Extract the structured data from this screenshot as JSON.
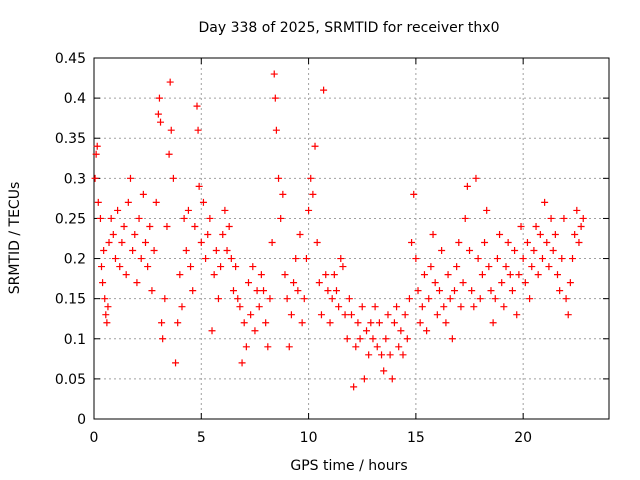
{
  "chart_data": {
    "type": "scatter",
    "title": "Day 338 of 2025, SRMTID for receiver thx0",
    "xlabel": "GPS time / hours",
    "ylabel": "SRMTID / TECUs",
    "xlim": [
      0,
      24
    ],
    "ylim": [
      0,
      0.45
    ],
    "xticks": [
      "0",
      "5",
      "10",
      "15",
      "20"
    ],
    "yticks": [
      "0",
      "0.05",
      "0.1",
      "0.15",
      "0.2",
      "0.25",
      "0.3",
      "0.35",
      "0.4",
      "0.45"
    ],
    "grid": true,
    "marker": "+",
    "series": [
      {
        "name": "SRMTID thx0",
        "color": "#ff0000",
        "points": [
          [
            0.05,
            0.3
          ],
          [
            0.1,
            0.33
          ],
          [
            0.15,
            0.34
          ],
          [
            0.2,
            0.27
          ],
          [
            0.3,
            0.25
          ],
          [
            0.35,
            0.19
          ],
          [
            0.4,
            0.17
          ],
          [
            0.45,
            0.21
          ],
          [
            0.5,
            0.15
          ],
          [
            0.55,
            0.13
          ],
          [
            0.6,
            0.12
          ],
          [
            0.65,
            0.14
          ],
          [
            0.7,
            0.22
          ],
          [
            0.8,
            0.25
          ],
          [
            0.9,
            0.23
          ],
          [
            1.0,
            0.2
          ],
          [
            1.1,
            0.26
          ],
          [
            1.2,
            0.19
          ],
          [
            1.3,
            0.22
          ],
          [
            1.4,
            0.24
          ],
          [
            1.5,
            0.18
          ],
          [
            1.6,
            0.27
          ],
          [
            1.7,
            0.3
          ],
          [
            1.8,
            0.21
          ],
          [
            1.9,
            0.23
          ],
          [
            2.0,
            0.17
          ],
          [
            2.1,
            0.25
          ],
          [
            2.2,
            0.2
          ],
          [
            2.3,
            0.28
          ],
          [
            2.4,
            0.22
          ],
          [
            2.5,
            0.19
          ],
          [
            2.6,
            0.24
          ],
          [
            2.7,
            0.16
          ],
          [
            2.8,
            0.21
          ],
          [
            2.9,
            0.27
          ],
          [
            3.0,
            0.38
          ],
          [
            3.05,
            0.4
          ],
          [
            3.1,
            0.37
          ],
          [
            3.15,
            0.12
          ],
          [
            3.2,
            0.1
          ],
          [
            3.3,
            0.15
          ],
          [
            3.4,
            0.24
          ],
          [
            3.5,
            0.33
          ],
          [
            3.55,
            0.42
          ],
          [
            3.6,
            0.36
          ],
          [
            3.7,
            0.3
          ],
          [
            3.8,
            0.07
          ],
          [
            3.9,
            0.12
          ],
          [
            4.0,
            0.18
          ],
          [
            4.1,
            0.14
          ],
          [
            4.2,
            0.25
          ],
          [
            4.3,
            0.21
          ],
          [
            4.4,
            0.26
          ],
          [
            4.5,
            0.19
          ],
          [
            4.6,
            0.16
          ],
          [
            4.7,
            0.24
          ],
          [
            4.8,
            0.39
          ],
          [
            4.85,
            0.36
          ],
          [
            4.9,
            0.29
          ],
          [
            5.0,
            0.22
          ],
          [
            5.1,
            0.27
          ],
          [
            5.2,
            0.2
          ],
          [
            5.3,
            0.23
          ],
          [
            5.4,
            0.25
          ],
          [
            5.5,
            0.11
          ],
          [
            5.6,
            0.18
          ],
          [
            5.7,
            0.21
          ],
          [
            5.8,
            0.15
          ],
          [
            5.9,
            0.19
          ],
          [
            6.0,
            0.23
          ],
          [
            6.1,
            0.26
          ],
          [
            6.2,
            0.21
          ],
          [
            6.3,
            0.24
          ],
          [
            6.4,
            0.2
          ],
          [
            6.5,
            0.16
          ],
          [
            6.6,
            0.19
          ],
          [
            6.7,
            0.15
          ],
          [
            6.8,
            0.14
          ],
          [
            6.9,
            0.07
          ],
          [
            7.0,
            0.12
          ],
          [
            7.1,
            0.09
          ],
          [
            7.2,
            0.17
          ],
          [
            7.3,
            0.13
          ],
          [
            7.4,
            0.19
          ],
          [
            7.5,
            0.11
          ],
          [
            7.6,
            0.16
          ],
          [
            7.7,
            0.14
          ],
          [
            7.8,
            0.18
          ],
          [
            7.9,
            0.16
          ],
          [
            8.0,
            0.12
          ],
          [
            8.1,
            0.09
          ],
          [
            8.2,
            0.15
          ],
          [
            8.3,
            0.22
          ],
          [
            8.4,
            0.43
          ],
          [
            8.45,
            0.4
          ],
          [
            8.5,
            0.36
          ],
          [
            8.6,
            0.3
          ],
          [
            8.7,
            0.25
          ],
          [
            8.8,
            0.28
          ],
          [
            8.9,
            0.18
          ],
          [
            9.0,
            0.15
          ],
          [
            9.1,
            0.09
          ],
          [
            9.2,
            0.13
          ],
          [
            9.3,
            0.17
          ],
          [
            9.4,
            0.2
          ],
          [
            9.5,
            0.16
          ],
          [
            9.6,
            0.23
          ],
          [
            9.7,
            0.12
          ],
          [
            9.8,
            0.15
          ],
          [
            9.9,
            0.2
          ],
          [
            10.0,
            0.26
          ],
          [
            10.1,
            0.3
          ],
          [
            10.2,
            0.28
          ],
          [
            10.3,
            0.34
          ],
          [
            10.4,
            0.22
          ],
          [
            10.5,
            0.17
          ],
          [
            10.6,
            0.13
          ],
          [
            10.7,
            0.41
          ],
          [
            10.8,
            0.18
          ],
          [
            10.9,
            0.16
          ],
          [
            11.0,
            0.12
          ],
          [
            11.1,
            0.15
          ],
          [
            11.2,
            0.18
          ],
          [
            11.3,
            0.16
          ],
          [
            11.4,
            0.14
          ],
          [
            11.5,
            0.2
          ],
          [
            11.6,
            0.19
          ],
          [
            11.7,
            0.13
          ],
          [
            11.8,
            0.1
          ],
          [
            11.9,
            0.15
          ],
          [
            12.0,
            0.13
          ],
          [
            12.1,
            0.04
          ],
          [
            12.2,
            0.09
          ],
          [
            12.3,
            0.12
          ],
          [
            12.4,
            0.1
          ],
          [
            12.5,
            0.14
          ],
          [
            12.6,
            0.05
          ],
          [
            12.7,
            0.11
          ],
          [
            12.8,
            0.08
          ],
          [
            12.9,
            0.12
          ],
          [
            13.0,
            0.1
          ],
          [
            13.1,
            0.14
          ],
          [
            13.2,
            0.09
          ],
          [
            13.3,
            0.12
          ],
          [
            13.4,
            0.08
          ],
          [
            13.5,
            0.06
          ],
          [
            13.6,
            0.1
          ],
          [
            13.7,
            0.13
          ],
          [
            13.8,
            0.08
          ],
          [
            13.9,
            0.05
          ],
          [
            14.0,
            0.12
          ],
          [
            14.1,
            0.14
          ],
          [
            14.2,
            0.09
          ],
          [
            14.3,
            0.11
          ],
          [
            14.4,
            0.08
          ],
          [
            14.5,
            0.13
          ],
          [
            14.6,
            0.1
          ],
          [
            14.7,
            0.15
          ],
          [
            14.8,
            0.22
          ],
          [
            14.9,
            0.28
          ],
          [
            15.0,
            0.2
          ],
          [
            15.1,
            0.16
          ],
          [
            15.2,
            0.12
          ],
          [
            15.3,
            0.14
          ],
          [
            15.4,
            0.18
          ],
          [
            15.5,
            0.11
          ],
          [
            15.6,
            0.15
          ],
          [
            15.7,
            0.19
          ],
          [
            15.8,
            0.23
          ],
          [
            15.9,
            0.17
          ],
          [
            16.0,
            0.13
          ],
          [
            16.1,
            0.16
          ],
          [
            16.2,
            0.21
          ],
          [
            16.3,
            0.14
          ],
          [
            16.4,
            0.12
          ],
          [
            16.5,
            0.18
          ],
          [
            16.6,
            0.15
          ],
          [
            16.7,
            0.1
          ],
          [
            16.8,
            0.16
          ],
          [
            16.9,
            0.19
          ],
          [
            17.0,
            0.22
          ],
          [
            17.1,
            0.14
          ],
          [
            17.2,
            0.17
          ],
          [
            17.3,
            0.25
          ],
          [
            17.4,
            0.29
          ],
          [
            17.5,
            0.21
          ],
          [
            17.6,
            0.16
          ],
          [
            17.7,
            0.14
          ],
          [
            17.8,
            0.3
          ],
          [
            17.9,
            0.2
          ],
          [
            18.0,
            0.15
          ],
          [
            18.1,
            0.18
          ],
          [
            18.2,
            0.22
          ],
          [
            18.3,
            0.26
          ],
          [
            18.4,
            0.19
          ],
          [
            18.5,
            0.16
          ],
          [
            18.6,
            0.12
          ],
          [
            18.7,
            0.15
          ],
          [
            18.8,
            0.2
          ],
          [
            18.9,
            0.23
          ],
          [
            19.0,
            0.17
          ],
          [
            19.1,
            0.14
          ],
          [
            19.2,
            0.19
          ],
          [
            19.3,
            0.22
          ],
          [
            19.4,
            0.18
          ],
          [
            19.5,
            0.16
          ],
          [
            19.6,
            0.21
          ],
          [
            19.7,
            0.13
          ],
          [
            19.8,
            0.18
          ],
          [
            19.9,
            0.24
          ],
          [
            20.0,
            0.2
          ],
          [
            20.1,
            0.17
          ],
          [
            20.2,
            0.22
          ],
          [
            20.3,
            0.15
          ],
          [
            20.4,
            0.19
          ],
          [
            20.5,
            0.21
          ],
          [
            20.6,
            0.24
          ],
          [
            20.7,
            0.18
          ],
          [
            20.8,
            0.23
          ],
          [
            20.9,
            0.2
          ],
          [
            21.0,
            0.27
          ],
          [
            21.1,
            0.22
          ],
          [
            21.2,
            0.19
          ],
          [
            21.3,
            0.25
          ],
          [
            21.4,
            0.21
          ],
          [
            21.5,
            0.23
          ],
          [
            21.6,
            0.18
          ],
          [
            21.7,
            0.16
          ],
          [
            21.8,
            0.2
          ],
          [
            21.9,
            0.25
          ],
          [
            22.0,
            0.15
          ],
          [
            22.1,
            0.13
          ],
          [
            22.2,
            0.17
          ],
          [
            22.3,
            0.2
          ],
          [
            22.4,
            0.23
          ],
          [
            22.5,
            0.26
          ],
          [
            22.6,
            0.22
          ],
          [
            22.7,
            0.24
          ],
          [
            22.8,
            0.25
          ]
        ]
      }
    ]
  }
}
